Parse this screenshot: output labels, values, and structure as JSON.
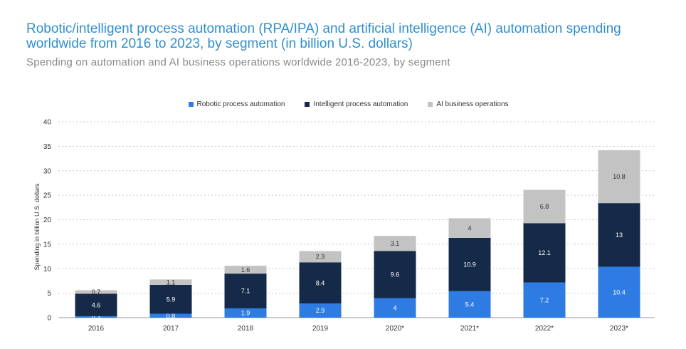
{
  "chart_data": {
    "type": "bar",
    "stacked": true,
    "title": "Robotic/intelligent process automation (RPA/IPA) and artificial intelligence (AI) automation spending worldwide from 2016 to 2023, by segment (in billion U.S. dollars)",
    "subtitle": "Spending on automation and AI business operations worldwide 2016-2023, by segment",
    "xlabel": "",
    "ylabel": "Spending in billion U.S. dollars",
    "ylim": [
      0,
      40
    ],
    "yticks": [
      0,
      5,
      10,
      15,
      20,
      25,
      30,
      35,
      40
    ],
    "grid": true,
    "legend_position": "top-center",
    "categories": [
      "2016",
      "2017",
      "2018",
      "2019",
      "2020*",
      "2021*",
      "2022*",
      "2023*"
    ],
    "series": [
      {
        "name": "Robotic process automation",
        "color": "#2e7ce3",
        "values": [
          0.3,
          0.8,
          1.9,
          2.9,
          4,
          5.4,
          7.2,
          10.4
        ],
        "labels": [
          "0.3",
          "0.8",
          "1.9",
          "2.9",
          "4",
          "5.4",
          "7.2",
          "10.4"
        ]
      },
      {
        "name": "Intelligent process automation",
        "color": "#152a48",
        "values": [
          4.6,
          5.9,
          7.1,
          8.4,
          9.6,
          10.9,
          12.1,
          13
        ],
        "labels": [
          "4.6",
          "5.9",
          "7.1",
          "8.4",
          "9.6",
          "10.9",
          "12.1",
          "13"
        ]
      },
      {
        "name": "AI business operations",
        "color": "#c3c3c3",
        "values": [
          0.7,
          1.1,
          1.6,
          2.3,
          3.1,
          4,
          6.8,
          10.8
        ],
        "labels": [
          "0.7",
          "1.1",
          "1.6",
          "2.3",
          "3.1",
          "4",
          "6.8",
          "10.8"
        ]
      }
    ]
  }
}
